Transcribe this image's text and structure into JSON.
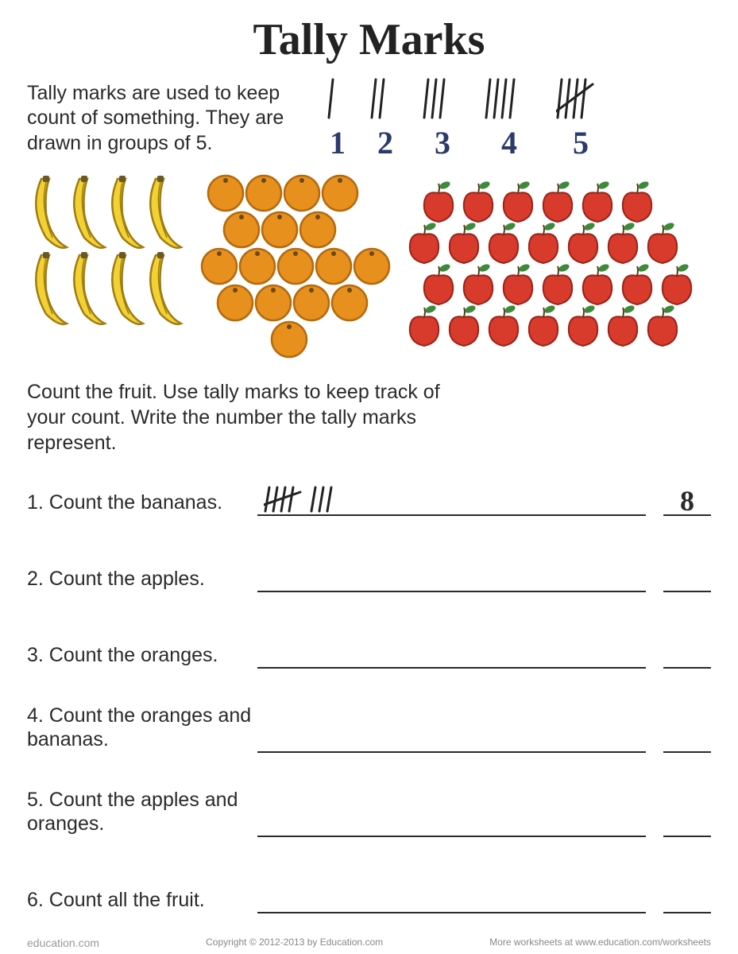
{
  "title": "Tally Marks",
  "intro": "Tally marks are used to keep count of something. They are drawn in groups of 5.",
  "legend": [
    {
      "n": 1,
      "marks": 1
    },
    {
      "n": 2,
      "marks": 2
    },
    {
      "n": 3,
      "marks": 3
    },
    {
      "n": 4,
      "marks": 4
    },
    {
      "n": 5,
      "marks": 5
    }
  ],
  "legend_number_color": "#2b3a6b",
  "instructions": "Count the fruit. Use tally marks to keep track of your count. Write the number the tally marks represent.",
  "fruits": {
    "bananas": {
      "count": 8,
      "color": "#f2d233",
      "outline": "#a07c12"
    },
    "oranges": {
      "count": 17,
      "color": "#e8901e",
      "outline": "#b56a0d"
    },
    "apples": {
      "count": 27,
      "color": "#d83a2b",
      "leaf": "#3e8a3b",
      "outline": "#9a2419"
    }
  },
  "questions": [
    {
      "num": "1.",
      "text": "Count the bananas.",
      "tally": 8,
      "answer": "8"
    },
    {
      "num": "2.",
      "text": "Count the apples.",
      "tally": 0,
      "answer": ""
    },
    {
      "num": "3.",
      "text": "Count the oranges.",
      "tally": 0,
      "answer": ""
    },
    {
      "num": "4.",
      "text": "Count the oranges and bananas.",
      "tally": 0,
      "answer": ""
    },
    {
      "num": "5.",
      "text": "Count the apples and oranges.",
      "tally": 0,
      "answer": ""
    },
    {
      "num": "6.",
      "text": "Count all the fruit.",
      "tally": 0,
      "answer": ""
    }
  ],
  "footer": {
    "logo": "education.com",
    "copyright": "Copyright © 2012-2013 by Education.com",
    "more": "More worksheets at www.education.com/worksheets"
  },
  "style": {
    "title_fontsize": 56,
    "body_fontsize": 25,
    "tally_stroke": "#222222",
    "tally_stroke_width": 3,
    "underline_color": "#2a2a2a",
    "background": "#ffffff"
  }
}
